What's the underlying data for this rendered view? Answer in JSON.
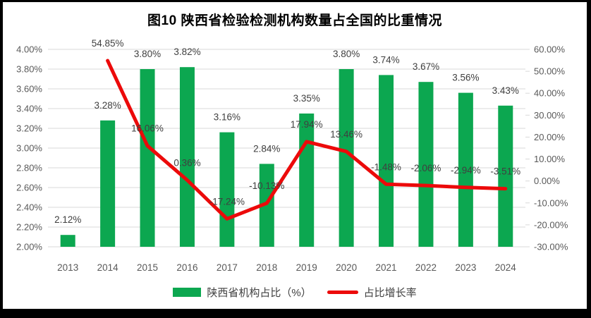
{
  "chart_data": {
    "type": "bar+line",
    "title": "图10  陕西省检验检测机构数量占全国的比重情况",
    "categories": [
      "2013",
      "2014",
      "2015",
      "2016",
      "2017",
      "2018",
      "2019",
      "2020",
      "2021",
      "2022",
      "2023",
      "2024"
    ],
    "series": [
      {
        "name": "陕西省机构占比（%）",
        "type": "bar",
        "axis": "left",
        "values": [
          2.12,
          3.28,
          3.8,
          3.82,
          3.16,
          2.84,
          3.35,
          3.8,
          3.74,
          3.67,
          3.56,
          3.43
        ],
        "labels": [
          "2.12%",
          "3.28%",
          "3.80%",
          "3.82%",
          "3.16%",
          "2.84%",
          "3.35%",
          "3.80%",
          "3.74%",
          "3.67%",
          "3.56%",
          "3.43%"
        ]
      },
      {
        "name": "占比增长率",
        "type": "line",
        "axis": "right",
        "values": [
          null,
          54.85,
          16.06,
          0.36,
          -17.24,
          -10.13,
          17.94,
          13.46,
          -1.48,
          -2.06,
          -2.94,
          -3.51
        ],
        "labels": [
          "",
          "54.85%",
          "16.06%",
          "0.36%",
          "-17.24%",
          "-10.13%",
          "17.94%",
          "13.46%",
          "-1.48%",
          "-2.06%",
          "-2.94%",
          "-3.51%"
        ]
      }
    ],
    "left_axis": {
      "min": 2.0,
      "max": 4.0,
      "step": 0.2,
      "ticks": [
        "4.00%",
        "3.80%",
        "3.60%",
        "3.40%",
        "3.20%",
        "3.00%",
        "2.80%",
        "2.60%",
        "2.40%",
        "2.20%",
        "2.00%"
      ]
    },
    "right_axis": {
      "min": -30,
      "max": 60,
      "step": 10,
      "ticks": [
        "60.00%",
        "50.00%",
        "40.00%",
        "30.00%",
        "20.00%",
        "10.00%",
        "0.00%",
        "-10.00%",
        "-20.00%",
        "-30.00%"
      ]
    },
    "legend": [
      {
        "label": "陕西省机构占比（%）",
        "swatch": "bar"
      },
      {
        "label": "占比增长率",
        "swatch": "line"
      }
    ],
    "legend_position": "bottom",
    "grid": true,
    "colors": {
      "bar": "#0CA750",
      "line": "#EC0A0A",
      "grid": "#D9D9D9",
      "axis_text": "#595959",
      "label_text": "#3F3F3F",
      "frame": "#000000",
      "background": "#FFFFFF"
    }
  }
}
